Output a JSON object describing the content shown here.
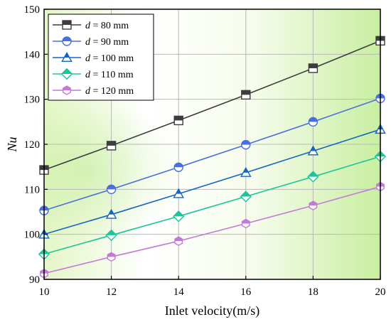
{
  "chart_data": {
    "type": "line",
    "xlabel": "Inlet velocity(m/s)",
    "ylabel": "Nu",
    "x": [
      10,
      12,
      14,
      16,
      18,
      20
    ],
    "xlim": [
      10,
      20
    ],
    "ylim": [
      90,
      150
    ],
    "xticks": [
      "10",
      "12",
      "14",
      "16",
      "18",
      "20"
    ],
    "yticks": [
      "90",
      "100",
      "110",
      "120",
      "130",
      "140",
      "150"
    ],
    "grid": true,
    "legend_position": "top-left",
    "background": "gradient white to light green",
    "series": [
      {
        "name": "d = 80 mm",
        "legend_var": "d",
        "legend_rest": " = 80 mm",
        "marker": "square",
        "color": "#3d3d3d",
        "values": [
          114.3,
          119.7,
          125.3,
          131.0,
          136.9,
          143.0
        ]
      },
      {
        "name": "d = 90 mm",
        "legend_var": "d",
        "legend_rest": " = 90 mm",
        "marker": "circle",
        "color": "#4a6fdd",
        "values": [
          105.3,
          110.0,
          114.9,
          119.9,
          125.0,
          130.2
        ]
      },
      {
        "name": "d = 100 mm",
        "legend_var": "d",
        "legend_rest": " = 100 mm",
        "marker": "triangle",
        "color": "#1565c0",
        "values": [
          100.0,
          104.4,
          109.0,
          113.7,
          118.5,
          123.3
        ]
      },
      {
        "name": "d = 110 mm",
        "legend_var": "d",
        "legend_rest": " = 110 mm",
        "marker": "diamond",
        "color": "#1ac59a",
        "values": [
          95.6,
          99.8,
          104.0,
          108.4,
          112.8,
          117.3
        ]
      },
      {
        "name": "d = 120 mm",
        "legend_var": "d",
        "legend_rest": " = 120 mm",
        "marker": "hexagon",
        "color": "#c17ad6",
        "values": [
          91.3,
          95.0,
          98.5,
          102.4,
          106.4,
          110.6
        ]
      }
    ]
  }
}
